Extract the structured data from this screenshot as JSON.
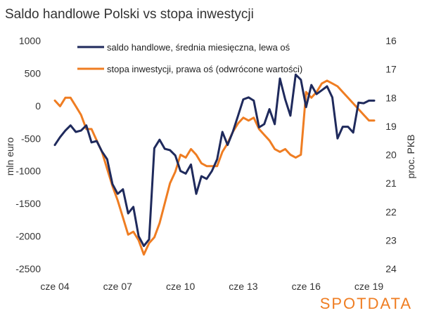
{
  "chart_data": {
    "type": "line",
    "title": "Saldo handlowe Polski vs stopa inwestycji",
    "x_ticks": [
      "cze 04",
      "cze 07",
      "cze 10",
      "cze 13",
      "cze 16",
      "cze 19"
    ],
    "x_tick_quarters": [
      0,
      12,
      24,
      36,
      48,
      60
    ],
    "left_axis": {
      "label": "mln euro",
      "ticks": [
        1000,
        500,
        0,
        -500,
        -1000,
        -1500,
        -2000,
        -2500
      ],
      "range": [
        -2500,
        1000
      ]
    },
    "right_axis": {
      "label": "proc. PKB",
      "ticks": [
        16,
        17,
        18,
        19,
        20,
        21,
        22,
        23,
        24
      ],
      "range": [
        16,
        24
      ],
      "reversed": true
    },
    "series": [
      {
        "name": "saldo handlowe, średnia miesięczna, lewa oś",
        "axis": "left",
        "color": "#1f2a5c",
        "x": [
          0,
          1,
          2,
          3,
          4,
          5,
          6,
          7,
          8,
          9,
          10,
          11,
          12,
          13,
          14,
          15,
          16,
          17,
          18,
          19,
          20,
          21,
          22,
          23,
          24,
          25,
          26,
          27,
          28,
          29,
          30,
          31,
          32,
          33,
          34,
          35,
          36,
          37,
          38,
          39,
          40,
          41,
          42,
          43,
          44,
          45,
          46,
          47,
          48,
          49,
          50,
          51,
          52,
          53,
          54,
          55,
          56,
          57,
          58,
          59,
          60,
          61
        ],
        "values": [
          -600,
          -480,
          -380,
          -300,
          -400,
          -380,
          -300,
          -560,
          -540,
          -700,
          -820,
          -1200,
          -1350,
          -1280,
          -1650,
          -1550,
          -2000,
          -2150,
          -2050,
          -650,
          -520,
          -660,
          -680,
          -760,
          -1000,
          -1040,
          -900,
          -1350,
          -1080,
          -1120,
          -1000,
          -820,
          -400,
          -600,
          -400,
          -150,
          100,
          130,
          80,
          -330,
          -280,
          -50,
          -280,
          420,
          100,
          -150,
          480,
          400,
          -20,
          320,
          180,
          240,
          300,
          130,
          -500,
          -320,
          -320,
          -410,
          50,
          40,
          80,
          80
        ]
      },
      {
        "name": "stopa inwestycji, prawa oś (odwrócone wartości)",
        "axis": "right",
        "color": "#ef7d22",
        "x": [
          0,
          1,
          2,
          3,
          4,
          5,
          6,
          7,
          8,
          9,
          10,
          11,
          12,
          13,
          14,
          15,
          16,
          17,
          18,
          19,
          20,
          21,
          22,
          23,
          24,
          25,
          26,
          27,
          28,
          29,
          30,
          31,
          32,
          33,
          34,
          35,
          36,
          37,
          38,
          39,
          40,
          41,
          42,
          43,
          44,
          45,
          46,
          47,
          48,
          49,
          50,
          51,
          52,
          53,
          54,
          55,
          56,
          57,
          58,
          59,
          60,
          61
        ],
        "values": [
          18.1,
          18.3,
          18.0,
          18.0,
          18.3,
          18.6,
          19.1,
          19.1,
          19.5,
          19.9,
          20.5,
          21.1,
          21.6,
          22.2,
          22.8,
          22.7,
          23.0,
          23.5,
          23.1,
          22.9,
          22.4,
          21.7,
          21.0,
          20.6,
          20.0,
          20.1,
          19.8,
          20.0,
          20.3,
          20.4,
          20.4,
          20.4,
          19.9,
          19.6,
          19.2,
          18.9,
          18.7,
          18.8,
          18.7,
          19.1,
          19.3,
          19.5,
          19.8,
          19.9,
          19.8,
          20.0,
          20.1,
          20.0,
          17.8,
          18.0,
          17.8,
          17.5,
          17.4,
          17.5,
          17.6,
          17.8,
          18.0,
          18.2,
          18.4,
          18.6,
          18.8,
          18.8
        ]
      }
    ]
  },
  "branding": {
    "logo_text": "SPOTDATA"
  }
}
